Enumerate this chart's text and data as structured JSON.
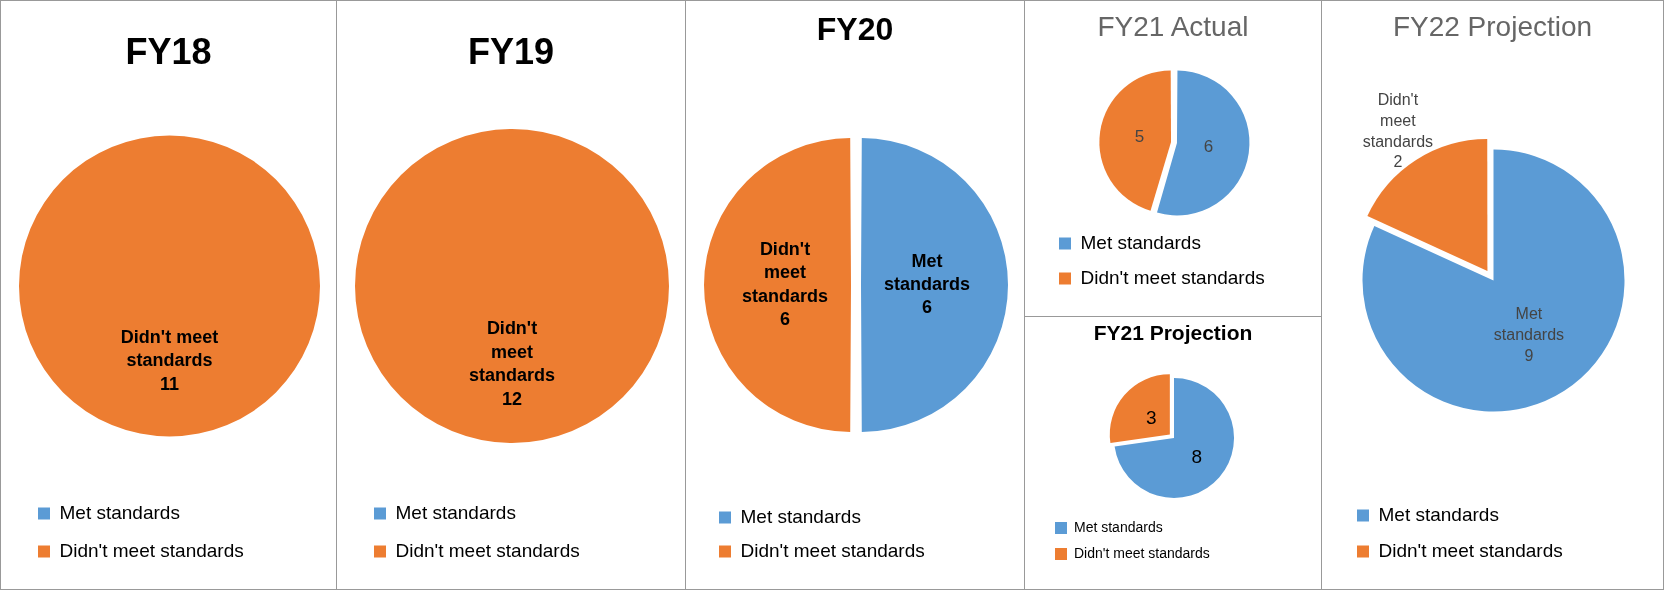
{
  "chart_data": [
    {
      "type": "pie",
      "title": "FY18",
      "categories": [
        "Met standards",
        "Didn't meet standards"
      ],
      "values": [
        0,
        11
      ],
      "colors": [
        "#5b9bd5",
        "#ed7d31"
      ],
      "value_labels": [
        null,
        "Didn't meet\nstandards\n11"
      ],
      "legend": "bottom"
    },
    {
      "type": "pie",
      "title": "FY19",
      "categories": [
        "Met standards",
        "Didn't meet standards"
      ],
      "values": [
        0,
        12
      ],
      "colors": [
        "#5b9bd5",
        "#ed7d31"
      ],
      "value_labels": [
        null,
        "Didn't\nmeet\nstandards\n12"
      ],
      "legend": "bottom"
    },
    {
      "type": "pie",
      "title": "FY20",
      "categories": [
        "Met standards",
        "Didn't meet standards"
      ],
      "values": [
        6,
        6
      ],
      "colors": [
        "#5b9bd5",
        "#ed7d31"
      ],
      "value_labels": [
        "Met\nstandards\n6",
        "Didn't\nmeet\nstandards\n6"
      ],
      "legend": "bottom"
    },
    {
      "type": "pie",
      "title": "FY21 Actual",
      "categories": [
        "Met standards",
        "Didn't meet standards"
      ],
      "values": [
        6,
        5
      ],
      "colors": [
        "#5b9bd5",
        "#ed7d31"
      ],
      "data_labels": true,
      "legend": "bottom"
    },
    {
      "type": "pie",
      "title": "FY21 Projection",
      "categories": [
        "Met standards",
        "Didn't meet standards"
      ],
      "values": [
        8,
        3
      ],
      "colors": [
        "#5b9bd5",
        "#ed7d31"
      ],
      "data_labels": true,
      "legend": "bottom"
    },
    {
      "type": "pie",
      "title": "FY22 Projection",
      "categories": [
        "Met standards",
        "Didn't meet standards"
      ],
      "values": [
        9,
        2
      ],
      "colors": [
        "#5b9bd5",
        "#ed7d31"
      ],
      "value_labels": [
        "Met\nstandards\n9",
        "Didn't\nmeet\nstandards\n2"
      ],
      "legend": "bottom"
    }
  ]
}
